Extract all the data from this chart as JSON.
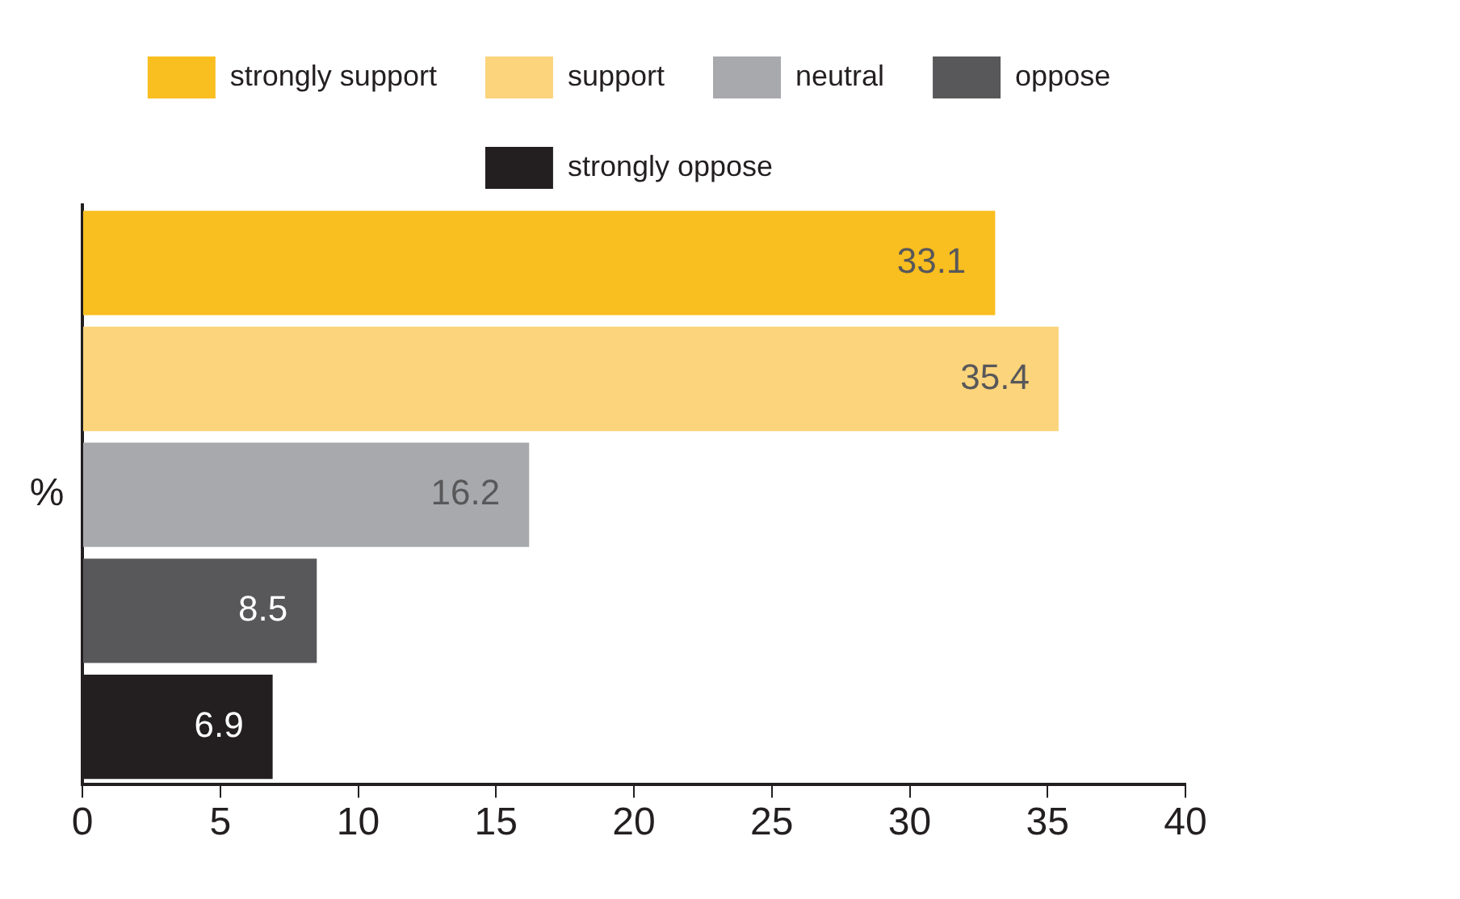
{
  "chart_data": {
    "type": "bar",
    "orientation": "horizontal",
    "stacked": true,
    "categories": [
      null,
      null,
      null,
      null,
      null
    ],
    "series": [
      {
        "name": "strongly support",
        "color": "#f9be1f",
        "values": [
          33.1,
          null,
          null,
          null,
          null
        ]
      },
      {
        "name": "support",
        "color": "#fbd47c",
        "values": [
          null,
          35.4,
          null,
          null,
          null
        ]
      },
      {
        "name": "neutral",
        "color": "#a8a9ad",
        "values": [
          null,
          null,
          16.2,
          null,
          null
        ]
      },
      {
        "name": "oppose",
        "color": "#58585a",
        "values": [
          null,
          null,
          null,
          8.5,
          null
        ]
      },
      {
        "name": "strongly oppose",
        "color": "#231f20",
        "values": [
          null,
          null,
          null,
          null,
          6.9
        ]
      }
    ],
    "ylabel": "%",
    "xlim": [
      0,
      40
    ],
    "xticks": [
      0,
      5,
      10,
      15,
      20,
      25,
      30,
      35,
      40
    ],
    "grid": false,
    "legend": "top",
    "data_labels": true
  }
}
